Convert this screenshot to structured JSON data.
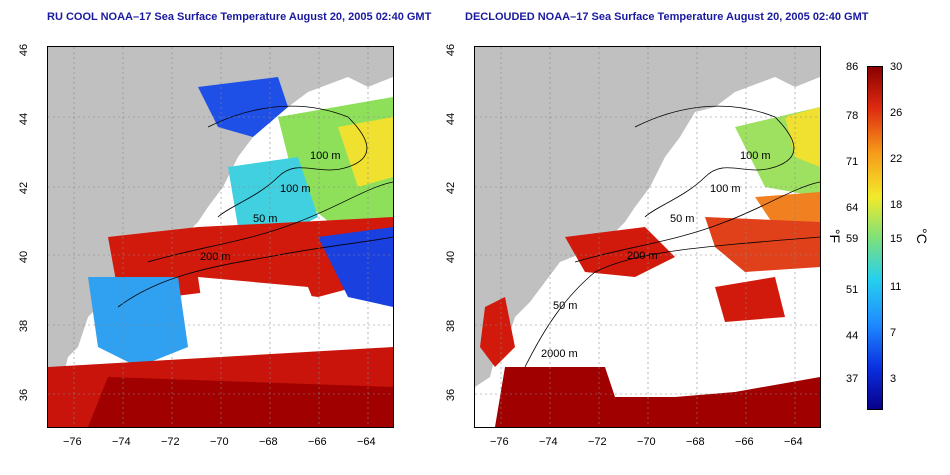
{
  "panels": [
    {
      "title": "RU COOL NOAA–17 Sea Surface Temperature August 20, 2005 02:40 GMT"
    },
    {
      "title": "DECLOUDED NOAA–17 Sea Surface Temperature August 20, 2005 02:40 GMT"
    }
  ],
  "axes": {
    "lat_ticks": [
      "46",
      "44",
      "42",
      "40",
      "38",
      "36"
    ],
    "lon_ticks": [
      "−76",
      "−74",
      "−72",
      "−70",
      "−68",
      "−66",
      "−64"
    ]
  },
  "contour_labels": {
    "left": [
      "100 m",
      "100 m",
      "50 m",
      "200 m"
    ],
    "right": [
      "100 m",
      "100 m",
      "50 m",
      "200 m",
      "50 m",
      "2000 m"
    ]
  },
  "colorbar": {
    "fahrenheit": [
      "86",
      "78",
      "71",
      "64",
      "59",
      "51",
      "44",
      "37"
    ],
    "celsius": [
      "30",
      "26",
      "22",
      "18",
      "15",
      "11",
      "7",
      "3"
    ],
    "unit_f": "°F",
    "unit_c": "°C"
  },
  "colors": {
    "land": "#c0c0c0",
    "warm": "#c8140a",
    "hot": "#a00000",
    "cold": "#1030e0",
    "mid": "#26c8e8",
    "green": "#8ee05a",
    "yellow": "#f0e030",
    "orange": "#f08020"
  }
}
